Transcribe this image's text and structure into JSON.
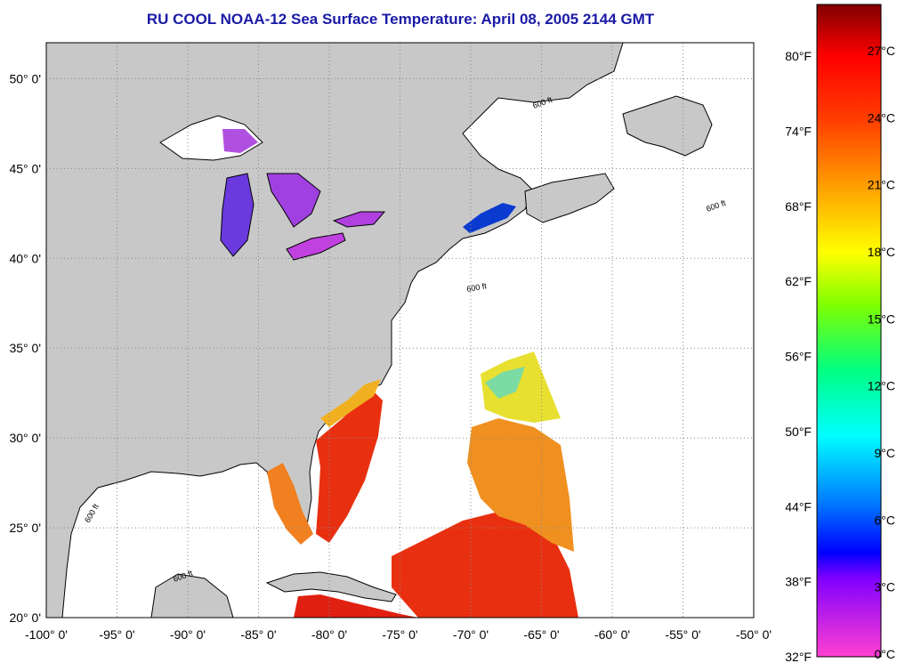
{
  "title": "RU COOL  NOAA-12  Sea Surface Temperature:  April 08, 2005 2144 GMT",
  "map": {
    "lon_range": [
      -100,
      -50
    ],
    "lat_range": [
      20,
      52
    ],
    "grid": "dotted",
    "lon_ticks": [
      "-100° 0'",
      "-95° 0'",
      "-90° 0'",
      "-85° 0'",
      "-80° 0'",
      "-75° 0'",
      "-70° 0'",
      "-65° 0'",
      "-60° 0'",
      "-55° 0'",
      "-50° 0'"
    ],
    "lat_ticks": [
      "20° 0'",
      "25° 0'",
      "30° 0'",
      "35° 0'",
      "40° 0'",
      "45° 0'",
      "50° 0'"
    ],
    "contour_label": "600 ft",
    "colors": {
      "land": "#c8c8c8",
      "water_nodata": "#ffffff",
      "coast": "#000000"
    }
  },
  "colorbar": {
    "celsius": [
      "27°C",
      "24°C",
      "21°C",
      "18°C",
      "15°C",
      "12°C",
      "9°C",
      "6°C",
      "3°C",
      "0°C"
    ],
    "fahrenheit": [
      "80°F",
      "74°F",
      "68°F",
      "62°F",
      "56°F",
      "50°F",
      "44°F",
      "38°F",
      "32°F"
    ],
    "stops": [
      "#ff40d0",
      "#8000ff",
      "#0000ff",
      "#0080ff",
      "#00ffff",
      "#00ff80",
      "#80ff00",
      "#ffff00",
      "#ffa000",
      "#ff4000",
      "#ff0000",
      "#800000"
    ]
  }
}
